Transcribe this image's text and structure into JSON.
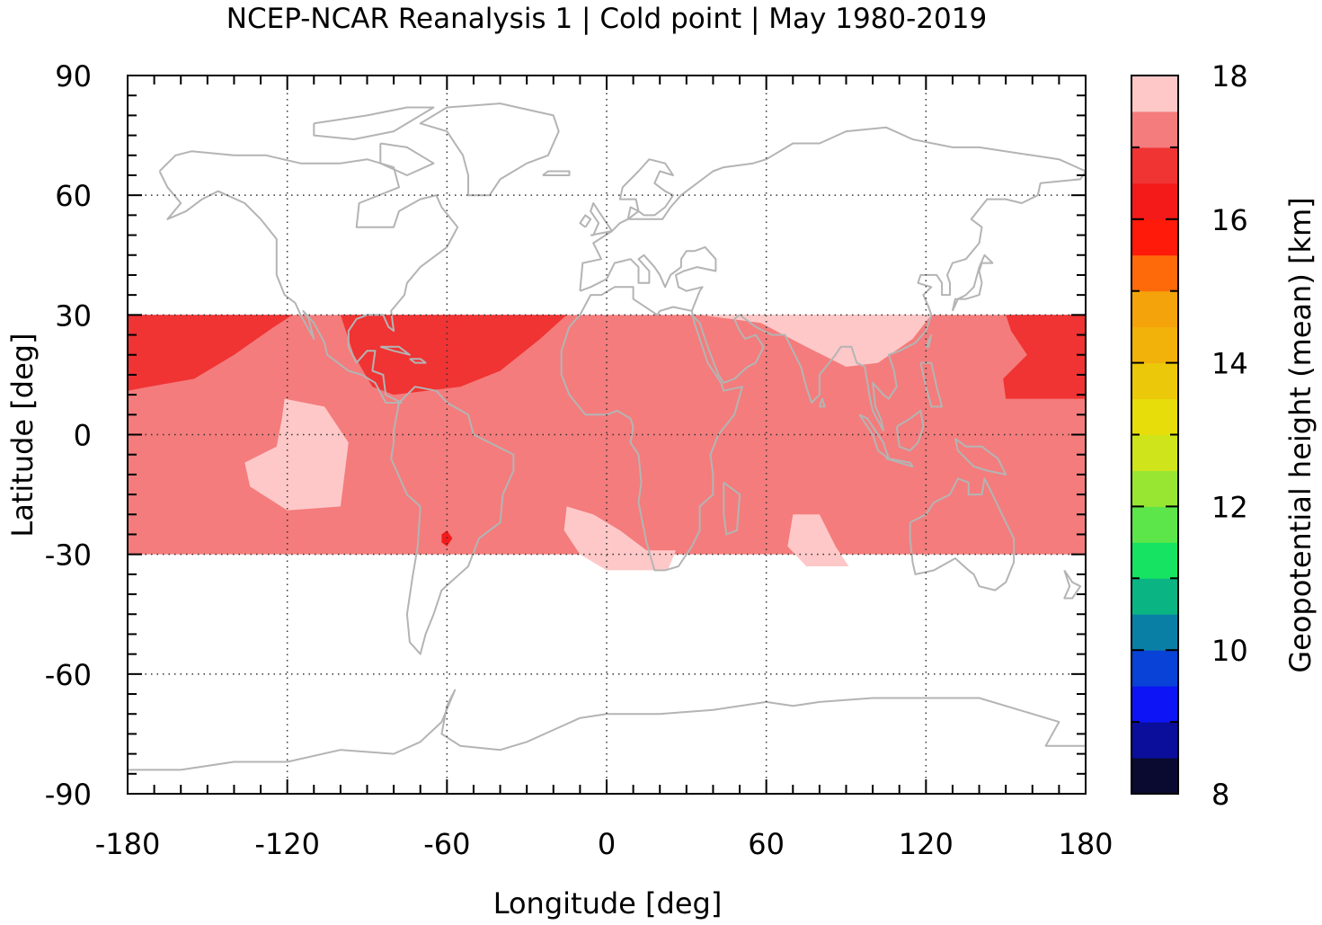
{
  "chart_data": {
    "type": "heatmap",
    "title": "NCEP-NCAR Reanalysis 1 | Cold point | May 1980-2019",
    "xlabel": "Longitude [deg]",
    "ylabel": "Latitude [deg]",
    "xlim": [
      -180,
      180
    ],
    "ylim": [
      -90,
      90
    ],
    "x_ticks": [
      "-180",
      "-120",
      "-60",
      "0",
      "60",
      "120",
      "180"
    ],
    "x_tick_values": [
      -180,
      -120,
      -60,
      0,
      60,
      120,
      180
    ],
    "y_ticks": [
      "90",
      "60",
      "30",
      "0",
      "-30",
      "-60",
      "-90"
    ],
    "y_tick_values": [
      90,
      60,
      30,
      0,
      -30,
      -60,
      -90
    ],
    "grid": true,
    "coastlines": true,
    "data_region": {
      "lon": [
        -180,
        180
      ],
      "lat": [
        -30,
        30
      ]
    },
    "background_value_km": 17.25,
    "regions": [
      {
        "name": "north-pacific-west",
        "value_km": 16.75,
        "poly": [
          [
            -180,
            30
          ],
          [
            -118,
            30
          ],
          [
            -125,
            27
          ],
          [
            -140,
            20
          ],
          [
            -155,
            14
          ],
          [
            -172,
            12
          ],
          [
            -180,
            11
          ]
        ]
      },
      {
        "name": "north-pacific-east",
        "value_km": 16.75,
        "poly": [
          [
            150,
            30
          ],
          [
            180,
            30
          ],
          [
            180,
            9
          ],
          [
            150,
            9
          ],
          [
            149,
            14
          ],
          [
            158,
            20
          ],
          [
            152,
            26
          ]
        ]
      },
      {
        "name": "north-atlantic",
        "value_km": 16.75,
        "poly": [
          [
            -100,
            30
          ],
          [
            -15,
            30
          ],
          [
            -25,
            24
          ],
          [
            -40,
            16
          ],
          [
            -55,
            12
          ],
          [
            -80,
            10
          ],
          [
            -88,
            12
          ],
          [
            -95,
            20
          ]
        ]
      },
      {
        "name": "south-america-spot",
        "value_km": 16.25,
        "poly": [
          [
            -62,
            -25
          ],
          [
            -60,
            -24
          ],
          [
            -58,
            -26
          ],
          [
            -60,
            -28
          ],
          [
            -62,
            -27
          ]
        ]
      },
      {
        "name": "east-pacific-high",
        "value_km": 17.75,
        "poly": [
          [
            -121,
            9
          ],
          [
            -106,
            7
          ],
          [
            -97,
            -2
          ],
          [
            -100,
            -18
          ],
          [
            -120,
            -19
          ],
          [
            -134,
            -13
          ],
          [
            -136,
            -7
          ],
          [
            -124,
            -3
          ],
          [
            -122,
            4
          ]
        ]
      },
      {
        "name": "south-atlantic-high",
        "value_km": 17.75,
        "poly": [
          [
            -15,
            -18
          ],
          [
            -5,
            -20
          ],
          [
            5,
            -24
          ],
          [
            15,
            -29
          ],
          [
            26,
            -29
          ],
          [
            23,
            -34
          ],
          [
            0,
            -34
          ],
          [
            -10,
            -30
          ],
          [
            -16,
            -24
          ]
        ]
      },
      {
        "name": "indian-ocean-high",
        "value_km": 17.75,
        "poly": [
          [
            70,
            -20
          ],
          [
            80,
            -20
          ],
          [
            86,
            -28
          ],
          [
            91,
            -33
          ],
          [
            75,
            -33
          ],
          [
            68,
            -28
          ]
        ]
      },
      {
        "name": "asia-high",
        "value_km": 17.75,
        "poly": [
          [
            35,
            30
          ],
          [
            122,
            30
          ],
          [
            115,
            24
          ],
          [
            102,
            18
          ],
          [
            90,
            17
          ],
          [
            75,
            22
          ],
          [
            58,
            28
          ]
        ]
      }
    ],
    "colorbar": {
      "label": "Geopotential height (mean) [km]",
      "min": 8,
      "max": 18,
      "tick_labels": [
        "18",
        "16",
        "14",
        "12",
        "10",
        "8"
      ],
      "tick_values": [
        18,
        16,
        14,
        12,
        10,
        8
      ],
      "colors_bottom_to_top": [
        "#0a0a30",
        "#0a0e9a",
        "#0d14f5",
        "#0842d6",
        "#0a7fa6",
        "#0ab483",
        "#15e361",
        "#5ce649",
        "#99e632",
        "#cfe41a",
        "#e6dd0a",
        "#ebc90a",
        "#f2b20a",
        "#f4a40a",
        "#fe6a0a",
        "#ff1a0a",
        "#f51a1a",
        "#f03333",
        "#f47c7c",
        "#fec8c8"
      ]
    }
  }
}
